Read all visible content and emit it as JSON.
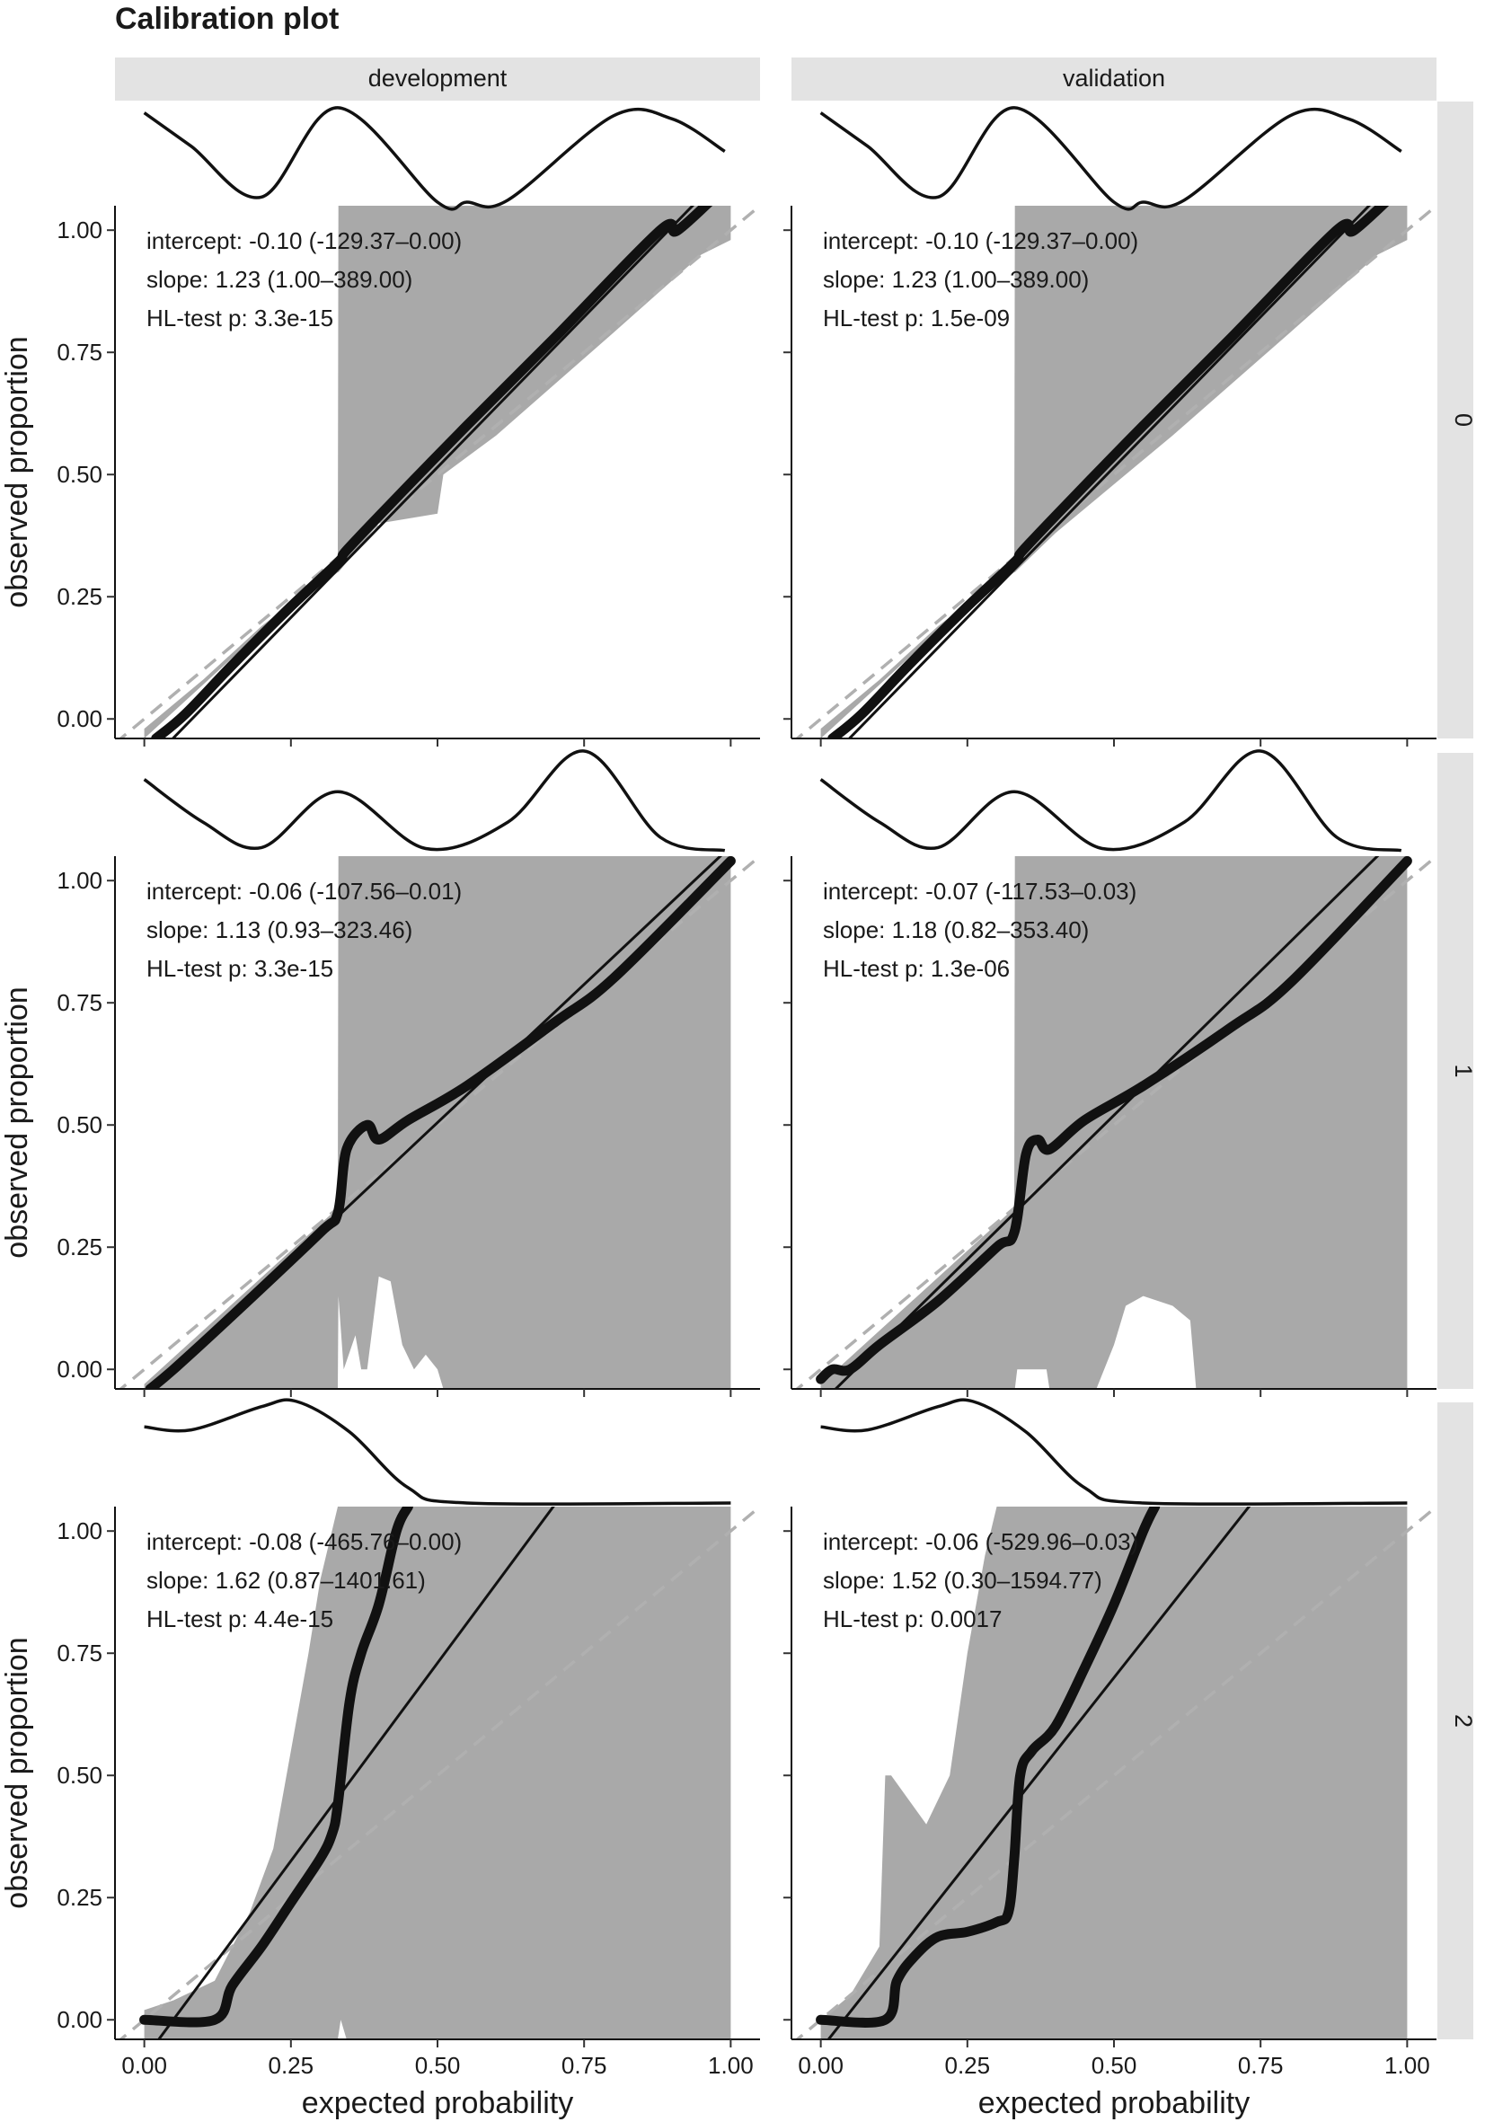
{
  "title": "Calibration plot",
  "chart_data": {
    "type": "line",
    "title": "Calibration plot",
    "xlabel": "expected probability",
    "ylabel": "observed proportion",
    "xlim": [
      0,
      1
    ],
    "ylim": [
      -0.04,
      1.05
    ],
    "xticks": [
      "0.00",
      "0.25",
      "0.50",
      "0.75",
      "1.00"
    ],
    "yticks": [
      "0.00",
      "0.25",
      "0.50",
      "0.75",
      "1.00"
    ],
    "columns": [
      "development",
      "validation"
    ],
    "rows": [
      "0",
      "1",
      "2"
    ],
    "reference_line": "dashed diagonal y = x",
    "panels": [
      {
        "column": "development",
        "row": "0",
        "stats": [
          "intercept: -0.10 (-129.37–0.00)",
          "slope: 1.23 (1.00–389.00)",
          "HL-test p: 3.3e-15"
        ],
        "fit_line": [
          [
            0.0,
            -0.1
          ],
          [
            1.0,
            1.13
          ]
        ],
        "calibration_curve": [
          [
            0.02,
            -0.04
          ],
          [
            0.07,
            0.01
          ],
          [
            0.15,
            0.11
          ],
          [
            0.25,
            0.23
          ],
          [
            0.33,
            0.32
          ],
          [
            0.345,
            0.345
          ],
          [
            0.42,
            0.44
          ],
          [
            0.55,
            0.6
          ],
          [
            0.7,
            0.78
          ],
          [
            0.88,
            1.0
          ],
          [
            0.91,
            1.0
          ],
          [
            1.0,
            1.1
          ]
        ],
        "ci_band": {
          "upper": [
            [
              0,
              -0.02
            ],
            [
              0.1,
              0.08
            ],
            [
              0.2,
              0.19
            ],
            [
              0.33,
              0.31
            ],
            [
              0.331,
              1.05
            ],
            [
              1.0,
              1.05
            ]
          ],
          "lower": [
            [
              0,
              -0.04
            ],
            [
              0.1,
              0.07
            ],
            [
              0.2,
              0.18
            ],
            [
              0.33,
              0.3
            ],
            [
              0.331,
              0.3
            ],
            [
              0.4,
              0.4
            ],
            [
              0.5,
              0.42
            ],
            [
              0.51,
              0.5
            ],
            [
              0.6,
              0.58
            ],
            [
              0.8,
              0.79
            ],
            [
              0.95,
              0.95
            ],
            [
              1.0,
              0.98
            ]
          ]
        },
        "density": [
          [
            0,
            0.88
          ],
          [
            0.08,
            0.55
          ],
          [
            0.2,
            0.05
          ],
          [
            0.33,
            0.93
          ],
          [
            0.5,
            0.0
          ],
          [
            0.55,
            0.0
          ],
          [
            0.62,
            0.02
          ],
          [
            0.8,
            0.85
          ],
          [
            0.9,
            0.82
          ],
          [
            0.99,
            0.5
          ]
        ]
      },
      {
        "column": "validation",
        "row": "0",
        "stats": [
          "intercept: -0.10 (-129.37–0.00)",
          "slope: 1.23 (1.00–389.00)",
          "HL-test p: 1.5e-09"
        ],
        "fit_line": [
          [
            0.0,
            -0.1
          ],
          [
            1.0,
            1.13
          ]
        ],
        "calibration_curve": [
          [
            0.02,
            -0.04
          ],
          [
            0.07,
            0.01
          ],
          [
            0.15,
            0.11
          ],
          [
            0.25,
            0.23
          ],
          [
            0.33,
            0.32
          ],
          [
            0.345,
            0.345
          ],
          [
            0.42,
            0.44
          ],
          [
            0.55,
            0.6
          ],
          [
            0.7,
            0.78
          ],
          [
            0.88,
            1.0
          ],
          [
            0.91,
            1.0
          ],
          [
            1.0,
            1.1
          ]
        ],
        "ci_band": {
          "upper": [
            [
              0,
              -0.02
            ],
            [
              0.1,
              0.08
            ],
            [
              0.2,
              0.19
            ],
            [
              0.33,
              0.31
            ],
            [
              0.331,
              1.05
            ],
            [
              1.0,
              1.05
            ]
          ],
          "lower": [
            [
              0,
              -0.04
            ],
            [
              0.1,
              0.07
            ],
            [
              0.2,
              0.18
            ],
            [
              0.33,
              0.3
            ],
            [
              0.331,
              0.3
            ],
            [
              0.4,
              0.38
            ],
            [
              0.6,
              0.58
            ],
            [
              0.8,
              0.79
            ],
            [
              0.95,
              0.95
            ],
            [
              1.0,
              0.98
            ]
          ]
        },
        "density": [
          [
            0,
            0.88
          ],
          [
            0.08,
            0.55
          ],
          [
            0.2,
            0.05
          ],
          [
            0.33,
            0.93
          ],
          [
            0.5,
            0.0
          ],
          [
            0.55,
            0.0
          ],
          [
            0.62,
            0.02
          ],
          [
            0.8,
            0.85
          ],
          [
            0.9,
            0.82
          ],
          [
            0.99,
            0.5
          ]
        ]
      },
      {
        "column": "development",
        "row": "1",
        "stats": [
          "intercept: -0.06 (-107.56–0.01)",
          "slope: 1.13 (0.93–323.46)",
          "HL-test p: 3.3e-15"
        ],
        "fit_line": [
          [
            0.0,
            -0.06
          ],
          [
            1.0,
            1.07
          ]
        ],
        "calibration_curve": [
          [
            0.01,
            -0.04
          ],
          [
            0.05,
            0.0
          ],
          [
            0.15,
            0.11
          ],
          [
            0.3,
            0.28
          ],
          [
            0.33,
            0.32
          ],
          [
            0.345,
            0.45
          ],
          [
            0.38,
            0.5
          ],
          [
            0.4,
            0.47
          ],
          [
            0.45,
            0.51
          ],
          [
            0.55,
            0.58
          ],
          [
            0.7,
            0.71
          ],
          [
            0.8,
            0.8
          ],
          [
            1.0,
            1.04
          ]
        ],
        "ci_band": {
          "upper": [
            [
              0,
              -0.03
            ],
            [
              0.33,
              0.33
            ],
            [
              0.331,
              1.05
            ],
            [
              1.0,
              1.05
            ]
          ],
          "lower": [
            [
              0,
              -0.04
            ],
            [
              0.33,
              -0.04
            ],
            [
              0.331,
              0.15
            ],
            [
              0.34,
              0.0
            ],
            [
              0.36,
              0.07
            ],
            [
              0.37,
              0.0
            ],
            [
              0.38,
              0.0
            ],
            [
              0.4,
              0.19
            ],
            [
              0.42,
              0.18
            ],
            [
              0.44,
              0.05
            ],
            [
              0.46,
              0.0
            ],
            [
              0.48,
              0.03
            ],
            [
              0.5,
              0.0
            ],
            [
              0.51,
              -0.04
            ],
            [
              1.0,
              -0.04
            ]
          ]
        },
        "density": [
          [
            0,
            0.72
          ],
          [
            0.1,
            0.3
          ],
          [
            0.2,
            0.05
          ],
          [
            0.33,
            0.6
          ],
          [
            0.48,
            0.04
          ],
          [
            0.62,
            0.3
          ],
          [
            0.75,
            1.0
          ],
          [
            0.88,
            0.15
          ],
          [
            0.99,
            0.02
          ]
        ]
      },
      {
        "column": "validation",
        "row": "1",
        "stats": [
          "intercept: -0.07 (-117.53–0.03)",
          "slope: 1.18 (0.82–353.40)",
          "HL-test p: 1.3e-06"
        ],
        "fit_line": [
          [
            0.0,
            -0.07
          ],
          [
            1.0,
            1.11
          ]
        ],
        "calibration_curve": [
          [
            0.0,
            -0.02
          ],
          [
            0.02,
            0.0
          ],
          [
            0.05,
            0.0
          ],
          [
            0.1,
            0.05
          ],
          [
            0.2,
            0.14
          ],
          [
            0.3,
            0.25
          ],
          [
            0.33,
            0.28
          ],
          [
            0.35,
            0.44
          ],
          [
            0.37,
            0.47
          ],
          [
            0.39,
            0.45
          ],
          [
            0.45,
            0.51
          ],
          [
            0.55,
            0.58
          ],
          [
            0.7,
            0.7
          ],
          [
            0.8,
            0.79
          ],
          [
            1.0,
            1.04
          ]
        ],
        "ci_band": {
          "upper": [
            [
              0,
              -0.03
            ],
            [
              0.33,
              0.33
            ],
            [
              0.331,
              1.05
            ],
            [
              1.0,
              1.05
            ]
          ],
          "lower": [
            [
              0,
              -0.04
            ],
            [
              0.33,
              -0.04
            ],
            [
              0.331,
              -0.04
            ],
            [
              0.335,
              0.0
            ],
            [
              0.385,
              0.0
            ],
            [
              0.39,
              -0.04
            ],
            [
              0.47,
              -0.04
            ],
            [
              0.5,
              0.05
            ],
            [
              0.52,
              0.13
            ],
            [
              0.55,
              0.15
            ],
            [
              0.6,
              0.13
            ],
            [
              0.63,
              0.1
            ],
            [
              0.64,
              -0.04
            ],
            [
              1.0,
              -0.04
            ]
          ]
        },
        "density": [
          [
            0,
            0.72
          ],
          [
            0.1,
            0.3
          ],
          [
            0.2,
            0.05
          ],
          [
            0.33,
            0.6
          ],
          [
            0.48,
            0.04
          ],
          [
            0.62,
            0.3
          ],
          [
            0.75,
            1.0
          ],
          [
            0.88,
            0.15
          ],
          [
            0.99,
            0.02
          ]
        ]
      },
      {
        "column": "development",
        "row": "2",
        "stats": [
          "intercept: -0.08 (-465.76–0.00)",
          "slope: 1.62 (0.87–1401.61)",
          "HL-test p: 4.4e-15"
        ],
        "fit_line": [
          [
            0.0,
            -0.08
          ],
          [
            1.0,
            1.54
          ]
        ],
        "calibration_curve": [
          [
            0.0,
            0.0
          ],
          [
            0.12,
            0.0
          ],
          [
            0.15,
            0.07
          ],
          [
            0.2,
            0.15
          ],
          [
            0.25,
            0.24
          ],
          [
            0.3,
            0.33
          ],
          [
            0.32,
            0.38
          ],
          [
            0.33,
            0.44
          ],
          [
            0.35,
            0.65
          ],
          [
            0.37,
            0.75
          ],
          [
            0.4,
            0.85
          ],
          [
            0.43,
            1.0
          ],
          [
            0.45,
            1.05
          ]
        ],
        "ci_band": {
          "upper": [
            [
              0,
              0.02
            ],
            [
              0.05,
              0.04
            ],
            [
              0.12,
              0.08
            ],
            [
              0.18,
              0.22
            ],
            [
              0.22,
              0.35
            ],
            [
              0.25,
              0.55
            ],
            [
              0.28,
              0.75
            ],
            [
              0.3,
              0.9
            ],
            [
              0.33,
              1.05
            ],
            [
              1.0,
              1.05
            ]
          ],
          "lower": [
            [
              0,
              -0.04
            ],
            [
              0.33,
              -0.04
            ],
            [
              0.335,
              0.0
            ],
            [
              0.345,
              -0.04
            ],
            [
              1.0,
              -0.04
            ]
          ]
        },
        "density": [
          [
            0,
            0.75
          ],
          [
            0.08,
            0.72
          ],
          [
            0.2,
            0.95
          ],
          [
            0.26,
            1.0
          ],
          [
            0.35,
            0.7
          ],
          [
            0.45,
            0.15
          ],
          [
            0.55,
            0.0
          ],
          [
            1.0,
            0.0
          ]
        ]
      },
      {
        "column": "validation",
        "row": "2",
        "stats": [
          "intercept: -0.06 (-529.96–0.03)",
          "slope: 1.52 (0.30–1594.77)",
          "HL-test p: 0.0017"
        ],
        "fit_line": [
          [
            0.0,
            -0.06
          ],
          [
            1.0,
            1.46
          ]
        ],
        "calibration_curve": [
          [
            0.0,
            0.0
          ],
          [
            0.11,
            0.0
          ],
          [
            0.13,
            0.08
          ],
          [
            0.16,
            0.13
          ],
          [
            0.2,
            0.17
          ],
          [
            0.25,
            0.18
          ],
          [
            0.3,
            0.2
          ],
          [
            0.32,
            0.22
          ],
          [
            0.33,
            0.33
          ],
          [
            0.34,
            0.5
          ],
          [
            0.36,
            0.55
          ],
          [
            0.4,
            0.6
          ],
          [
            0.45,
            0.72
          ],
          [
            0.5,
            0.85
          ],
          [
            0.55,
            1.0
          ],
          [
            0.57,
            1.05
          ]
        ],
        "ci_band": {
          "upper": [
            [
              0,
              0.0
            ],
            [
              0.05,
              0.05
            ],
            [
              0.1,
              0.15
            ],
            [
              0.11,
              0.5
            ],
            [
              0.12,
              0.5
            ],
            [
              0.15,
              0.45
            ],
            [
              0.18,
              0.4
            ],
            [
              0.22,
              0.5
            ],
            [
              0.25,
              0.75
            ],
            [
              0.28,
              0.95
            ],
            [
              0.3,
              1.05
            ],
            [
              1.0,
              1.05
            ]
          ],
          "lower": [
            [
              0,
              -0.04
            ],
            [
              1.0,
              -0.04
            ]
          ]
        },
        "density": [
          [
            0,
            0.75
          ],
          [
            0.08,
            0.72
          ],
          [
            0.2,
            0.95
          ],
          [
            0.26,
            1.0
          ],
          [
            0.35,
            0.7
          ],
          [
            0.45,
            0.15
          ],
          [
            0.55,
            0.0
          ],
          [
            1.0,
            0.0
          ]
        ]
      }
    ]
  }
}
